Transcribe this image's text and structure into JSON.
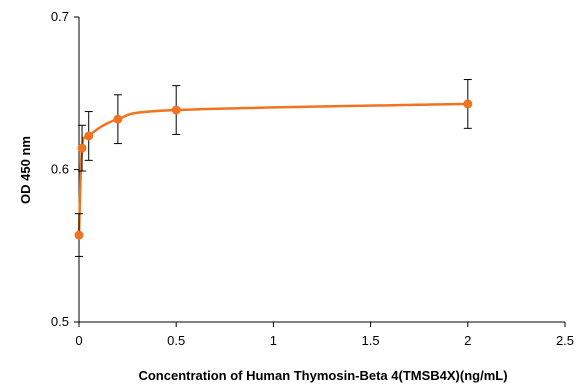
{
  "chart_data": {
    "type": "scatter",
    "title": "",
    "xlabel": "Concentration of Human Thymosin-Beta 4(TMSB4X)(ng/mL)",
    "ylabel": "OD 450 nm",
    "xlim": [
      0,
      2.5
    ],
    "ylim": [
      0.5,
      0.7
    ],
    "x_ticks": [
      0,
      0.5,
      1,
      1.5,
      2,
      2.5
    ],
    "x_tick_labels": [
      "0",
      "0.5",
      "1",
      "1.5",
      "2",
      "2.5"
    ],
    "y_ticks": [
      0.5,
      0.6,
      0.7
    ],
    "y_tick_labels": [
      "0.5",
      "0.6",
      "0.7"
    ],
    "grid": false,
    "legend": "none",
    "series": [
      {
        "x": [
          0,
          0.0156,
          0.05,
          0.2,
          0.5,
          2.0
        ],
        "y": [
          0.557,
          0.614,
          0.622,
          0.633,
          0.639,
          0.643
        ],
        "error": [
          0.014,
          0.015,
          0.016,
          0.016,
          0.016,
          0.016
        ],
        "curve": "fitted",
        "color": "#F07320"
      }
    ],
    "error_bar_color": "#000000",
    "axis_color": "#000000"
  }
}
